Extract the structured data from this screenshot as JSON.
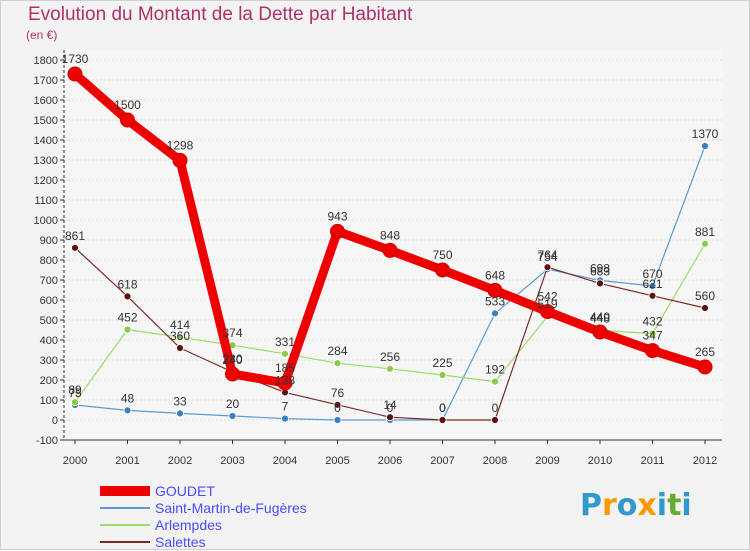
{
  "chart_data": {
    "type": "line",
    "title": "Evolution du Montant de la Dette par Habitant",
    "subtitle": "(en €)",
    "ylim": [
      -100,
      1800
    ],
    "yticks": [
      -100,
      0,
      100,
      200,
      300,
      400,
      500,
      600,
      700,
      800,
      900,
      1000,
      1100,
      1200,
      1300,
      1400,
      1500,
      1600,
      1700,
      1800
    ],
    "categories": [
      "2000",
      "2001",
      "2002",
      "2003",
      "2004",
      "2005",
      "2006",
      "2007",
      "2008",
      "2009",
      "2010",
      "2011",
      "2012"
    ],
    "series": [
      {
        "name": "GOUDET",
        "color": "#ee0000",
        "width": 9,
        "marker": 7,
        "values": [
          1730,
          1500,
          1298,
          230,
          185,
          943,
          848,
          750,
          648,
          542,
          440,
          347,
          265
        ]
      },
      {
        "name": "Saint-Martin-de-Fugères",
        "color": "#5c9bd4",
        "width": 1.2,
        "marker": 3.5,
        "markerColor": "#3a7fc4",
        "values": [
          75,
          48,
          33,
          20,
          7,
          0,
          0,
          0,
          533,
          754,
          698,
          670,
          1370
        ]
      },
      {
        "name": "Arlempdes",
        "color": "#99dd66",
        "width": 1.2,
        "marker": 3.5,
        "markerColor": "#88cc44",
        "values": [
          89,
          452,
          414,
          374,
          331,
          284,
          256,
          225,
          192,
          519,
          448,
          432,
          881
        ]
      },
      {
        "name": "Salettes",
        "color": "#7a2a2a",
        "width": 1.2,
        "marker": 3.5,
        "markerColor": "#5e1111",
        "values": [
          861,
          618,
          360,
          240,
          138,
          76,
          14,
          0,
          0,
          764,
          683,
          621,
          560
        ]
      }
    ],
    "labels": [
      {
        "series": 0,
        "index": 0,
        "text": "1730"
      },
      {
        "series": 0,
        "index": 1,
        "text": "1500"
      },
      {
        "series": 0,
        "index": 2,
        "text": "1298"
      },
      {
        "series": 0,
        "index": 3,
        "text": "230"
      },
      {
        "series": 0,
        "index": 4,
        "text": "185"
      },
      {
        "series": 0,
        "index": 5,
        "text": "943"
      },
      {
        "series": 0,
        "index": 6,
        "text": "848"
      },
      {
        "series": 0,
        "index": 7,
        "text": "750"
      },
      {
        "series": 0,
        "index": 8,
        "text": "648"
      },
      {
        "series": 0,
        "index": 9,
        "text": "542"
      },
      {
        "series": 0,
        "index": 10,
        "text": "440"
      },
      {
        "series": 0,
        "index": 11,
        "text": "347"
      },
      {
        "series": 0,
        "index": 12,
        "text": "265"
      },
      {
        "series": 1,
        "index": 0,
        "text": "75"
      },
      {
        "series": 1,
        "index": 1,
        "text": "48"
      },
      {
        "series": 1,
        "index": 2,
        "text": "33"
      },
      {
        "series": 1,
        "index": 3,
        "text": "20"
      },
      {
        "series": 1,
        "index": 4,
        "text": "7"
      },
      {
        "series": 1,
        "index": 5,
        "text": "0"
      },
      {
        "series": 1,
        "index": 6,
        "text": "0"
      },
      {
        "series": 1,
        "index": 7,
        "text": "0"
      },
      {
        "series": 1,
        "index": 8,
        "text": "533"
      },
      {
        "series": 1,
        "index": 9,
        "text": "754"
      },
      {
        "series": 1,
        "index": 10,
        "text": "698"
      },
      {
        "series": 1,
        "index": 11,
        "text": "670"
      },
      {
        "series": 1,
        "index": 12,
        "text": "1370"
      },
      {
        "series": 2,
        "index": 0,
        "text": "89"
      },
      {
        "series": 2,
        "index": 1,
        "text": "452"
      },
      {
        "series": 2,
        "index": 2,
        "text": "414"
      },
      {
        "series": 2,
        "index": 3,
        "text": "374"
      },
      {
        "series": 2,
        "index": 4,
        "text": "331"
      },
      {
        "series": 2,
        "index": 5,
        "text": "284"
      },
      {
        "series": 2,
        "index": 6,
        "text": "256"
      },
      {
        "series": 2,
        "index": 7,
        "text": "225"
      },
      {
        "series": 2,
        "index": 8,
        "text": "192"
      },
      {
        "series": 2,
        "index": 9,
        "text": "519"
      },
      {
        "series": 2,
        "index": 10,
        "text": "448"
      },
      {
        "series": 2,
        "index": 11,
        "text": "432"
      },
      {
        "series": 2,
        "index": 12,
        "text": "881"
      },
      {
        "series": 3,
        "index": 0,
        "text": "861"
      },
      {
        "series": 3,
        "index": 1,
        "text": "618"
      },
      {
        "series": 3,
        "index": 2,
        "text": "360"
      },
      {
        "series": 3,
        "index": 3,
        "text": "240"
      },
      {
        "series": 3,
        "index": 4,
        "text": "138"
      },
      {
        "series": 3,
        "index": 5,
        "text": "76"
      },
      {
        "series": 3,
        "index": 6,
        "text": "14"
      },
      {
        "series": 3,
        "index": 7,
        "text": "0"
      },
      {
        "series": 3,
        "index": 8,
        "text": "0"
      },
      {
        "series": 3,
        "index": 9,
        "text": "764"
      },
      {
        "series": 3,
        "index": 10,
        "text": "683"
      },
      {
        "series": 3,
        "index": 11,
        "text": "621"
      },
      {
        "series": 3,
        "index": 12,
        "text": "560"
      }
    ]
  },
  "legend": {
    "items": [
      {
        "label": "GOUDET",
        "color": "#ee0000",
        "thickness": 10
      },
      {
        "label": "Saint-Martin-de-Fugères",
        "color": "#5c9bd4",
        "thickness": 2
      },
      {
        "label": "Arlempdes",
        "color": "#99dd66",
        "thickness": 2
      },
      {
        "label": "Salettes",
        "color": "#7a2a2a",
        "thickness": 2
      }
    ]
  },
  "logo": {
    "text": "Proxiti",
    "letters": [
      "P",
      "r",
      "o",
      "x",
      "i",
      "t",
      "i"
    ],
    "colors": [
      "#3399cc",
      "#ff9900",
      "#3399cc",
      "#ff9900",
      "#3399cc",
      "#66aa33",
      "#3399cc"
    ]
  }
}
